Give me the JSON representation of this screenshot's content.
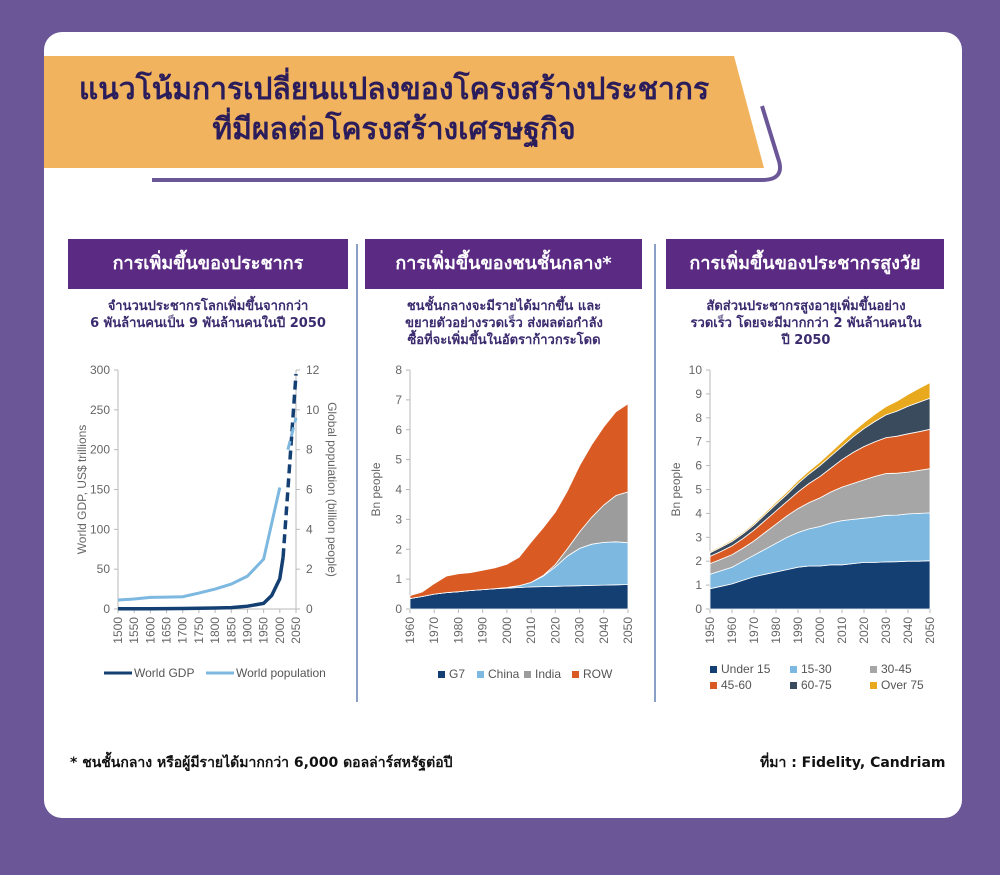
{
  "header": {
    "title_line1": "แนวโน้มการเปลี่ยนแปลงของโครงสร้างประชากร",
    "title_line2": "ที่มีผลต่อโครงสร้างเศรษฐกิจ"
  },
  "panels": [
    {
      "heading": "การเพิ่มขึ้นของประชากร",
      "subtitle": [
        "จำนวนประชากรโลกเพิ่มขึ้นจากกว่า",
        "6 พันล้านคนเป็น 9 พันล้านคนในปี 2050"
      ]
    },
    {
      "heading": "การเพิ่มขึ้นของชนชั้นกลาง*",
      "subtitle": [
        "ชนชั้นกลางจะมีรายได้มากขึ้น และ",
        "ขยายตัวอย่างรวดเร็ว ส่งผลต่อกำลัง",
        "ซื้อที่จะเพิ่มขึ้นในอัตราก้าวกระโดด"
      ]
    },
    {
      "heading": "การเพิ่มขึ้นของประชากรสูงวัย",
      "subtitle": [
        "สัดส่วนประชากรสูงอายุเพิ่มขึ้นอย่าง",
        "รวดเร็ว โดยจะมีมากกว่า 2 พันล้านคนใน",
        "ปี 2050"
      ]
    }
  ],
  "footer": {
    "note": "* ชนชั้นกลาง หรือผู้มีรายได้มากกว่า 6,000 ดอลล่าร์สหรัฐต่อปี",
    "source": "ที่มา : Fidelity, Candriam"
  },
  "colors": {
    "background": "#6b5798",
    "banner": "#f2b35e",
    "panel_header": "#5b2a83",
    "title_text": "#2b1d5c"
  },
  "chart_data": [
    {
      "type": "line",
      "x": [
        1500,
        1550,
        1600,
        1650,
        1700,
        1750,
        1800,
        1850,
        1900,
        1950,
        2000,
        2050
      ],
      "x_ticks": [
        "1500",
        "1550",
        "1600",
        "1650",
        "1700",
        "1750",
        "1800",
        "1850",
        "1900",
        "1950",
        "2000",
        "2050"
      ],
      "ylabel": "World GDP, US$ trillions",
      "ylim": [
        0,
        300
      ],
      "y_ticks": [
        "0",
        "50",
        "100",
        "150",
        "200",
        "250",
        "300"
      ],
      "y2label": "Global population (billion people)",
      "y2lim": [
        0,
        12
      ],
      "y2_ticks": [
        "0",
        "2",
        "4",
        "6",
        "8",
        "10",
        "12"
      ],
      "series": [
        {
          "name": "World GDP",
          "axis": "left",
          "color": "#143f73",
          "x": [
            1500,
            1600,
            1700,
            1800,
            1850,
            1900,
            1950,
            1975,
            2000,
            2010,
            2025,
            2050
          ],
          "values": [
            0.25,
            0.4,
            0.6,
            1.2,
            1.8,
            3.5,
            7,
            17,
            38,
            65,
            150,
            295
          ],
          "dashed_from_x": 2010
        },
        {
          "name": "World population",
          "axis": "right",
          "color": "#7db8e0",
          "x": [
            1500,
            1550,
            1600,
            1650,
            1700,
            1750,
            1800,
            1850,
            1900,
            1950,
            2000,
            2025,
            2050
          ],
          "values": [
            0.45,
            0.5,
            0.58,
            0.6,
            0.62,
            0.8,
            1.0,
            1.25,
            1.65,
            2.5,
            6.1,
            8.0,
            9.6
          ],
          "dashed_from_x": 2010
        }
      ],
      "legend_position": "bottom",
      "grid": false
    },
    {
      "type": "area",
      "x": [
        1960,
        1965,
        1970,
        1975,
        1980,
        1985,
        1990,
        1995,
        2000,
        2005,
        2010,
        2015,
        2020,
        2025,
        2030,
        2035,
        2040,
        2045,
        2050
      ],
      "x_ticks": [
        "1960",
        "1970",
        "1980",
        "1990",
        "2000",
        "2010",
        "2020",
        "2030",
        "2040",
        "2050"
      ],
      "ylabel": "Bn people",
      "ylim": [
        0,
        8
      ],
      "y_ticks": [
        "0",
        "1",
        "2",
        "3",
        "4",
        "5",
        "6",
        "7",
        "8"
      ],
      "stacked": true,
      "series": [
        {
          "name": "G7",
          "color": "#143f73",
          "values": [
            0.35,
            0.42,
            0.5,
            0.55,
            0.58,
            0.62,
            0.65,
            0.68,
            0.7,
            0.72,
            0.74,
            0.75,
            0.76,
            0.77,
            0.78,
            0.79,
            0.8,
            0.81,
            0.82
          ]
        },
        {
          "name": "China",
          "color": "#7db8e0",
          "values": [
            0,
            0,
            0,
            0,
            0,
            0,
            0,
            0,
            0.02,
            0.06,
            0.15,
            0.35,
            0.65,
            1.0,
            1.25,
            1.38,
            1.43,
            1.44,
            1.4
          ]
        },
        {
          "name": "India",
          "color": "#9c9c9c",
          "values": [
            0,
            0,
            0,
            0,
            0,
            0,
            0,
            0,
            0,
            0,
            0,
            0.02,
            0.08,
            0.25,
            0.55,
            0.9,
            1.25,
            1.55,
            1.7
          ]
        },
        {
          "name": "ROW",
          "color": "#d95b23",
          "values": [
            0.1,
            0.15,
            0.35,
            0.55,
            0.6,
            0.6,
            0.65,
            0.7,
            0.78,
            0.95,
            1.35,
            1.6,
            1.75,
            1.93,
            2.22,
            2.43,
            2.62,
            2.8,
            2.95
          ]
        }
      ],
      "legend_position": "bottom",
      "grid": false
    },
    {
      "type": "area",
      "x": [
        1950,
        1955,
        1960,
        1965,
        1970,
        1975,
        1980,
        1985,
        1990,
        1995,
        2000,
        2005,
        2010,
        2015,
        2020,
        2025,
        2030,
        2035,
        2040,
        2045,
        2050
      ],
      "x_ticks": [
        "1950",
        "1960",
        "1970",
        "1980",
        "1990",
        "2000",
        "2010",
        "2020",
        "2030",
        "2040",
        "2050"
      ],
      "ylabel": "Bn people",
      "ylim": [
        0,
        10
      ],
      "y_ticks": [
        "0",
        "1",
        "2",
        "3",
        "4",
        "5",
        "6",
        "7",
        "8",
        "9",
        "10"
      ],
      "stacked": true,
      "series": [
        {
          "name": "Under 15",
          "color": "#143f73",
          "values": [
            0.85,
            0.95,
            1.05,
            1.2,
            1.35,
            1.45,
            1.55,
            1.65,
            1.75,
            1.8,
            1.8,
            1.85,
            1.85,
            1.9,
            1.95,
            1.95,
            1.97,
            1.98,
            2.0,
            2.0,
            2.02
          ]
        },
        {
          "name": "15-30",
          "color": "#7db8e0",
          "values": [
            0.6,
            0.65,
            0.7,
            0.8,
            0.9,
            1.05,
            1.2,
            1.35,
            1.45,
            1.55,
            1.65,
            1.75,
            1.85,
            1.85,
            1.85,
            1.9,
            1.95,
            1.95,
            1.98,
            2.0,
            2.0
          ]
        },
        {
          "name": "30-45",
          "color": "#a6a6a6",
          "values": [
            0.45,
            0.48,
            0.52,
            0.55,
            0.6,
            0.7,
            0.8,
            0.9,
            1.0,
            1.1,
            1.2,
            1.3,
            1.4,
            1.5,
            1.6,
            1.7,
            1.75,
            1.75,
            1.75,
            1.8,
            1.85
          ]
        },
        {
          "name": "45-60",
          "color": "#d95b23",
          "values": [
            0.3,
            0.33,
            0.37,
            0.4,
            0.45,
            0.5,
            0.55,
            0.6,
            0.7,
            0.8,
            0.9,
            1.0,
            1.15,
            1.3,
            1.4,
            1.45,
            1.5,
            1.55,
            1.6,
            1.62,
            1.65
          ]
        },
        {
          "name": "60-75",
          "color": "#3a4b5e",
          "values": [
            0.15,
            0.17,
            0.19,
            0.2,
            0.22,
            0.25,
            0.28,
            0.3,
            0.35,
            0.4,
            0.45,
            0.5,
            0.55,
            0.65,
            0.75,
            0.85,
            0.95,
            1.05,
            1.15,
            1.23,
            1.3
          ]
        },
        {
          "name": "Over 75",
          "color": "#e9a91f",
          "values": [
            0.05,
            0.05,
            0.06,
            0.06,
            0.07,
            0.08,
            0.09,
            0.1,
            0.12,
            0.13,
            0.15,
            0.17,
            0.2,
            0.22,
            0.25,
            0.3,
            0.35,
            0.42,
            0.5,
            0.58,
            0.65
          ]
        }
      ],
      "legend_position": "bottom",
      "grid": false
    }
  ]
}
